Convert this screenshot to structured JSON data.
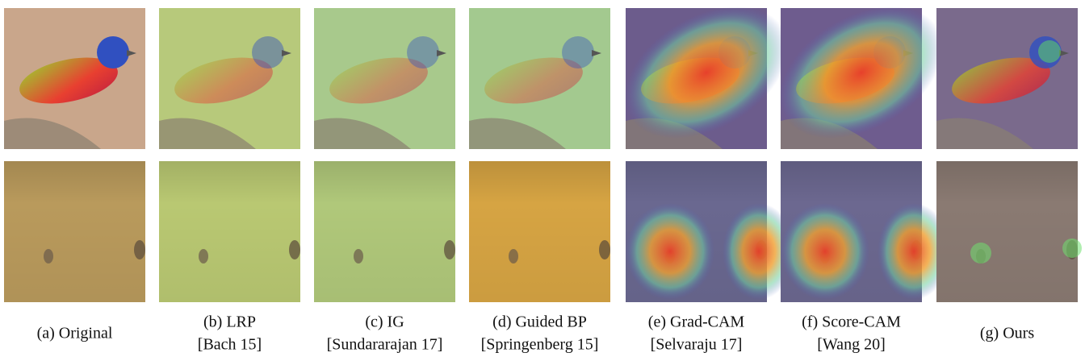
{
  "figure": {
    "panels": [
      {
        "label": "(a) Original"
      },
      {
        "label": "(b) LRP",
        "citation": "[Bach 15]"
      },
      {
        "label": "(c) IG",
        "citation": "[Sundararajan 17]"
      },
      {
        "label": "(d) Guided BP",
        "citation": "[Springenberg 15]"
      },
      {
        "label": "(e) Grad-CAM",
        "citation": "[Selvaraju 17]"
      },
      {
        "label": "(f) Score-CAM",
        "citation": "[Wang 20]"
      },
      {
        "label": "(g) Ours"
      }
    ]
  }
}
